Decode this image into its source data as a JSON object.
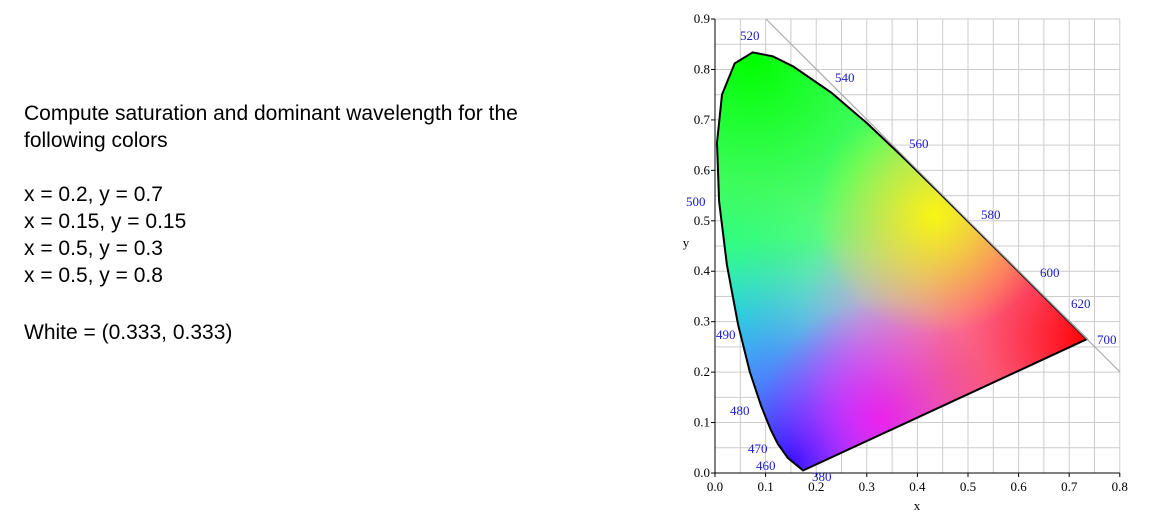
{
  "text": {
    "question": [
      "Compute saturation and dominant wavelength for the",
      "following colors"
    ],
    "colors": [
      "x = 0.2, y = 0.7",
      "x = 0.15, y = 0.15",
      "x = 0.5, y = 0.3",
      "x = 0.5, y = 0.8"
    ],
    "white": "White = (0.333, 0.333)"
  },
  "diagram": {
    "x_label": "x",
    "y_label": "y",
    "x_ticks": [
      "0.0",
      "0.1",
      "0.2",
      "0.3",
      "0.4",
      "0.5",
      "0.6",
      "0.7",
      "0.8"
    ],
    "y_ticks": [
      "0.0",
      "0.1",
      "0.2",
      "0.3",
      "0.4",
      "0.5",
      "0.6",
      "0.7",
      "0.8",
      "0.9"
    ],
    "wavelength_labels": [
      "520",
      "540",
      "560",
      "580",
      "600",
      "620",
      "700",
      "490",
      "500",
      "480",
      "470",
      "460",
      "380"
    ]
  }
}
